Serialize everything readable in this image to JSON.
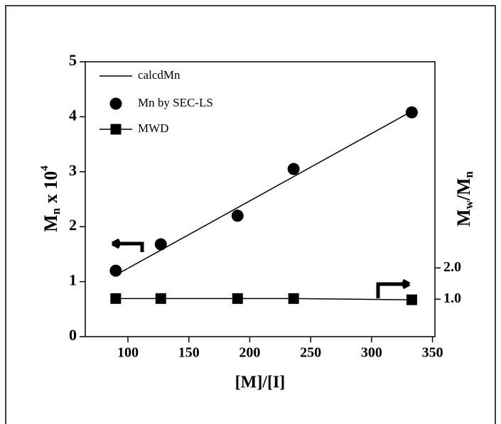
{
  "chart_data": {
    "type": "line",
    "xlabel": "[M]/[I]",
    "ylabel": [
      "M",
      "n",
      " x 10",
      "4"
    ],
    "y2label": [
      "M",
      "w",
      "/M",
      "n"
    ],
    "xlim": [
      65,
      352
    ],
    "xticks": [
      100,
      150,
      200,
      250,
      300,
      350
    ],
    "ylim": [
      0,
      5
    ],
    "yticks": [
      0,
      1,
      2,
      3,
      4,
      5
    ],
    "y2lim": [
      -0.2,
      8.6
    ],
    "y2ticks": [
      {
        "value": 1,
        "label": "1.0"
      },
      {
        "value": 2,
        "label": "2.0"
      }
    ],
    "legend": "upper left",
    "series": [
      {
        "name": "calcdMn",
        "color": "#000000",
        "marker": "none",
        "x": [
          90,
          333
        ],
        "values": [
          1.12,
          4.1
        ]
      },
      {
        "name": "Mn by SEC-LS",
        "color": "#000000",
        "marker": "circle",
        "x": [
          90,
          127,
          190,
          236,
          333
        ],
        "values": [
          1.2,
          1.68,
          2.2,
          3.05,
          4.08
        ]
      },
      {
        "name": "MWD",
        "color": "#000000",
        "marker": "square",
        "axis": "y2",
        "x": [
          90,
          127,
          190,
          236,
          333
        ],
        "values": [
          1.02,
          1.02,
          1.02,
          1.02,
          0.98
        ]
      }
    ]
  }
}
